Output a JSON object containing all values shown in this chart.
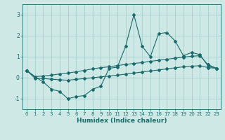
{
  "xlabel": "Humidex (Indice chaleur)",
  "background_color": "#cde8e5",
  "grid_color": "#a0c8c8",
  "line_color": "#1a6b6b",
  "x_data": [
    0,
    1,
    2,
    3,
    4,
    5,
    6,
    7,
    8,
    9,
    10,
    11,
    12,
    13,
    14,
    15,
    16,
    17,
    18,
    19,
    20,
    21,
    22,
    23
  ],
  "y_main": [
    0.35,
    0.05,
    -0.2,
    -0.55,
    -0.65,
    -1.0,
    -0.9,
    -0.85,
    -0.55,
    -0.4,
    0.45,
    0.5,
    1.5,
    3.0,
    1.5,
    1.0,
    2.1,
    2.15,
    1.75,
    1.05,
    1.2,
    1.1,
    0.55,
    0.45
  ],
  "y_upper": [
    0.35,
    0.05,
    0.08,
    0.12,
    0.18,
    0.22,
    0.28,
    0.35,
    0.42,
    0.48,
    0.52,
    0.58,
    0.63,
    0.68,
    0.72,
    0.78,
    0.83,
    0.88,
    0.93,
    0.98,
    1.02,
    1.05,
    0.62,
    0.45
  ],
  "y_lower": [
    0.35,
    -0.02,
    -0.04,
    -0.07,
    -0.1,
    -0.12,
    -0.08,
    -0.04,
    0.0,
    0.04,
    0.08,
    0.12,
    0.17,
    0.22,
    0.27,
    0.32,
    0.37,
    0.42,
    0.47,
    0.52,
    0.55,
    0.57,
    0.48,
    0.45
  ],
  "ylim": [
    -1.5,
    3.5
  ],
  "xlim": [
    -0.5,
    23.5
  ],
  "yticks": [
    -1,
    0,
    1,
    2,
    3
  ],
  "xticks": [
    0,
    1,
    2,
    3,
    4,
    5,
    6,
    7,
    8,
    9,
    10,
    11,
    12,
    13,
    14,
    15,
    16,
    17,
    18,
    19,
    20,
    21,
    22,
    23
  ],
  "marker": "D",
  "marker_size": 2.0,
  "line_width": 0.8
}
